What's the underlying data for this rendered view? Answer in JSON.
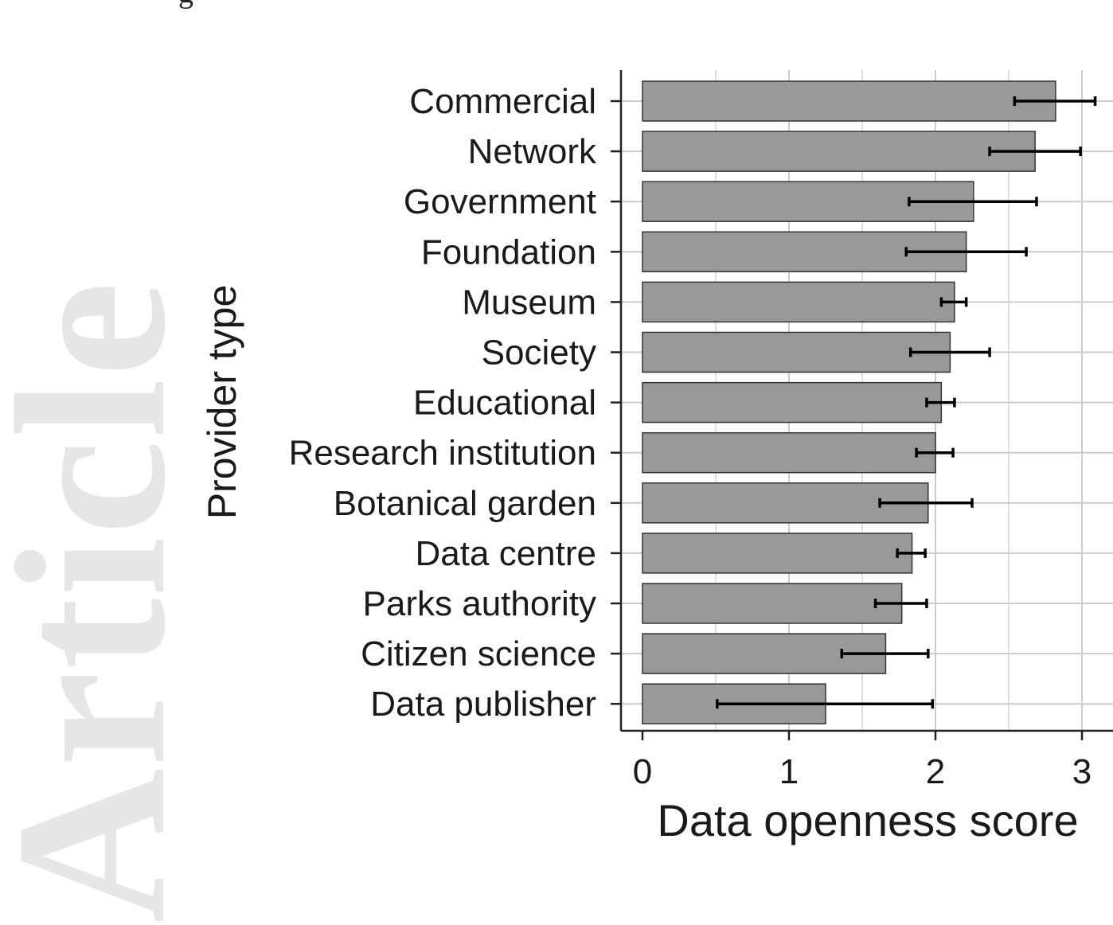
{
  "page": {
    "watermark": "Article",
    "top_fragment": "g"
  },
  "colors": {
    "bar_fill": "#999999",
    "bar_stroke": "#333333",
    "grid": "#cccccc",
    "axis": "#222222",
    "error_bar": "#000000",
    "watermark": "#e6e6e6"
  },
  "chart_data": {
    "type": "bar",
    "orientation": "horizontal",
    "title": "",
    "xlabel": "Data openness score",
    "ylabel": "Provider type",
    "xlim": [
      0,
      3
    ],
    "xticks": [
      "0",
      "1",
      "2",
      "3"
    ],
    "grid": true,
    "categories": [
      "Commercial",
      "Network",
      "Government",
      "Foundation",
      "Museum",
      "Society",
      "Educational",
      "Research institution",
      "Botanical garden",
      "Data centre",
      "Parks authority",
      "Citizen science",
      "Data publisher"
    ],
    "values": [
      2.82,
      2.68,
      2.26,
      2.21,
      2.13,
      2.1,
      2.04,
      2.0,
      1.95,
      1.84,
      1.77,
      1.66,
      1.25
    ],
    "error_low": [
      2.54,
      2.37,
      1.82,
      1.8,
      2.04,
      1.83,
      1.94,
      1.87,
      1.62,
      1.74,
      1.59,
      1.36,
      0.51
    ],
    "error_high": [
      3.09,
      2.99,
      2.69,
      2.62,
      2.21,
      2.37,
      2.13,
      2.12,
      2.25,
      1.93,
      1.94,
      1.95,
      1.98
    ]
  }
}
